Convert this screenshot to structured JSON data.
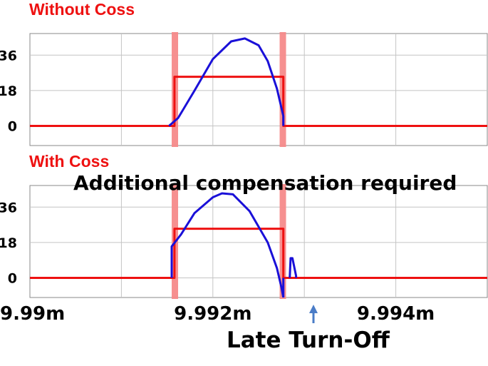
{
  "chart_data": [
    {
      "type": "line",
      "title": "Without Coss",
      "x_range": [
        9.99,
        9.995
      ],
      "x_unit": "m",
      "ylim": [
        -10,
        47
      ],
      "yticks": [
        "36",
        "18",
        "0"
      ],
      "ytick_values": [
        36,
        18,
        0
      ],
      "grid": true,
      "highlight_bands": [
        [
          9.99155,
          9.99162
        ],
        [
          9.99273,
          9.9928
        ]
      ],
      "series": [
        {
          "color": "#ee1111",
          "x": [
            9.9899,
            9.99158,
            9.99158,
            9.99277,
            9.99277,
            9.9953
          ],
          "y": [
            0,
            0,
            25,
            25,
            0,
            0
          ]
        },
        {
          "color": "#1a10d8",
          "x": [
            9.99152,
            9.99162,
            9.9918,
            9.992,
            9.9922,
            9.99235,
            9.9925,
            9.9926,
            9.9927,
            9.99277,
            9.99277
          ],
          "y": [
            0,
            4,
            18,
            34,
            43,
            44.5,
            41,
            33,
            19,
            5,
            0
          ]
        }
      ]
    },
    {
      "type": "line",
      "title": "With Coss",
      "x_range": [
        9.99,
        9.995
      ],
      "x_unit": "m",
      "ylim": [
        -10,
        47
      ],
      "yticks": [
        "36",
        "18",
        "0"
      ],
      "ytick_values": [
        36,
        18,
        0
      ],
      "grid": true,
      "xticks": [
        "9.99m",
        "9.992m",
        "9.994m"
      ],
      "xtick_values": [
        9.99,
        9.992,
        9.994
      ],
      "highlight_bands": [
        [
          9.99155,
          9.99162
        ],
        [
          9.99273,
          9.9928
        ]
      ],
      "series": [
        {
          "color": "#ee1111",
          "x": [
            9.9899,
            9.99158,
            9.99158,
            9.99277,
            9.99277,
            9.9953
          ],
          "y": [
            0,
            0,
            25,
            25,
            0,
            0
          ]
        },
        {
          "color": "#1a10d8",
          "x": [
            9.99155,
            9.99155,
            9.99165,
            9.9918,
            9.992,
            9.9921,
            9.99222,
            9.9924,
            9.9926,
            9.9927,
            9.99275,
            9.99277,
            9.99277
          ],
          "y": [
            0,
            16,
            22,
            33,
            41,
            43,
            42.5,
            34,
            18,
            5,
            -5,
            -10,
            0
          ]
        },
        {
          "color": "#1a10d8",
          "x": [
            9.99284,
            9.99285,
            9.99287,
            9.99291,
            9.99291
          ],
          "y": [
            0,
            10,
            10,
            1,
            0
          ]
        }
      ]
    }
  ],
  "annotations": {
    "compensation": "Additional compensation required",
    "late_turn_off": "Late Turn-Off",
    "arrow_color": "#4a7cc7"
  }
}
